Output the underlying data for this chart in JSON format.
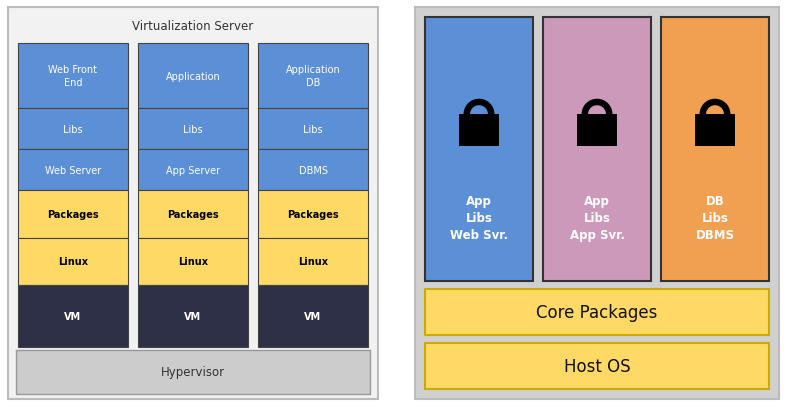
{
  "left_title": "Virtualization Server",
  "left_bg": "#f2f2f2",
  "left_border": "#aaaaaa",
  "vm_columns": [
    {
      "layers": [
        {
          "label": "Web Front\nEnd",
          "color": "#5b8fd6",
          "text_color": "white"
        },
        {
          "label": "Libs",
          "color": "#5b8fd6",
          "text_color": "white"
        },
        {
          "label": "Web Server",
          "color": "#5b8fd6",
          "text_color": "white"
        },
        {
          "label": "Packages",
          "color": "#ffd966",
          "text_color": "black"
        },
        {
          "label": "Linux",
          "color": "#ffd966",
          "text_color": "black"
        },
        {
          "label": "VM",
          "color": "#2d3047",
          "text_color": "white"
        }
      ]
    },
    {
      "layers": [
        {
          "label": "Application",
          "color": "#5b8fd6",
          "text_color": "white"
        },
        {
          "label": "Libs",
          "color": "#5b8fd6",
          "text_color": "white"
        },
        {
          "label": "App Server",
          "color": "#5b8fd6",
          "text_color": "white"
        },
        {
          "label": "Packages",
          "color": "#ffd966",
          "text_color": "black"
        },
        {
          "label": "Linux",
          "color": "#ffd966",
          "text_color": "black"
        },
        {
          "label": "VM",
          "color": "#2d3047",
          "text_color": "white"
        }
      ]
    },
    {
      "layers": [
        {
          "label": "Application\nDB",
          "color": "#5b8fd6",
          "text_color": "white"
        },
        {
          "label": "Libs",
          "color": "#5b8fd6",
          "text_color": "white"
        },
        {
          "label": "DBMS",
          "color": "#5b8fd6",
          "text_color": "white"
        },
        {
          "label": "Packages",
          "color": "#ffd966",
          "text_color": "black"
        },
        {
          "label": "Linux",
          "color": "#ffd966",
          "text_color": "black"
        },
        {
          "label": "VM",
          "color": "#2d3047",
          "text_color": "white"
        }
      ]
    }
  ],
  "hypervisor_color": "#cccccc",
  "hypervisor_label": "Hypervisor",
  "right_bg": "#d0d0d0",
  "right_border": "#aaaaaa",
  "containers": [
    {
      "label": "App\nLibs\nWeb Svr.",
      "color": "#5b8fd6",
      "text_color": "white"
    },
    {
      "label": "App\nLibs\nApp Svr.",
      "color": "#cc99bb",
      "text_color": "white"
    },
    {
      "label": "DB\nLibs\nDBMS",
      "color": "#f0a050",
      "text_color": "white"
    }
  ],
  "core_packages_label": "Core Packages",
  "core_packages_color": "#ffd966",
  "host_os_label": "Host OS",
  "host_os_color": "#ffd966",
  "font_size_small": 7,
  "font_size_medium": 8.5,
  "font_size_large": 12
}
